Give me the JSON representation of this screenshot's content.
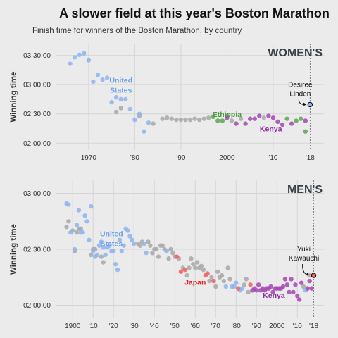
{
  "title": "A slower field at this year's Boston Marathon",
  "subtitle": "Finish time for winners of the Boston Marathon, by country",
  "colors": {
    "United States": "#8db4f0",
    "Ethiopia": "#5aa84e",
    "Kenya": "#a447b4",
    "Japan": "#f06060",
    "Other": "#a8a8a8",
    "usa_label": "#6d9ee8",
    "ethiopia_label": "#4c9a42",
    "kenya_label": "#8e2fa0",
    "japan_label": "#e02020",
    "highlight_outline": "#000000"
  },
  "chart_data": [
    {
      "type": "scatter",
      "panel_label": "WOMEN'S",
      "ylabel": "Winning time",
      "xlabel": "",
      "x_ticks": [
        1970,
        1980,
        1990,
        2000,
        2010,
        2018
      ],
      "x_tick_labels": [
        "1970",
        "'80",
        "'90",
        "2000",
        "'10",
        "'18"
      ],
      "y_ticks": [
        120,
        150,
        180,
        210
      ],
      "y_tick_labels": [
        "02:00:00",
        "02:30:00",
        "03:00:00",
        "03:30:00"
      ],
      "xlim": [
        1963,
        2021
      ],
      "ylim": [
        113,
        222
      ],
      "y_units": "minutes",
      "country_labels": [
        {
          "text": "United\nStates",
          "country": "United States",
          "x": 1977,
          "y": 182
        },
        {
          "text": "Ethiopia",
          "country": "Ethiopia",
          "x": 2000,
          "y": 147
        },
        {
          "text": "Kenya",
          "country": "Kenya",
          "x": 2009.5,
          "y": 132
        }
      ],
      "annotation": {
        "text": "Desiree\nLinden",
        "x": 2018,
        "y": 159
      },
      "series": [
        {
          "name": "United States",
          "points": [
            [
              1966,
              201.4
            ],
            [
              1967,
              208
            ],
            [
              1968,
              210.6
            ],
            [
              1969,
              212
            ],
            [
              1970,
              205
            ],
            [
              1971,
              183
            ],
            [
              1972,
              190
            ],
            [
              1973,
              185
            ],
            [
              1974,
              187
            ],
            [
              1975,
              162
            ],
            [
              1976,
              167
            ],
            [
              1977,
              165
            ],
            [
              1978,
              165
            ],
            [
              1979,
              155
            ],
            [
              1980,
              144
            ],
            [
              1981,
              150
            ],
            [
              1982,
              132
            ],
            [
              1983,
              141
            ],
            [
              2018,
              159.6
            ]
          ]
        },
        {
          "name": "Ethiopia",
          "points": [
            [
              1997,
              147
            ],
            [
              1998,
              143
            ],
            [
              1999,
              143
            ],
            [
              2000,
              148
            ],
            [
              2013,
              145
            ],
            [
              2015,
              143
            ],
            [
              2016,
              145
            ],
            [
              2017,
              132
            ]
          ]
        },
        {
          "name": "Kenya",
          "points": [
            [
              2000,
              146
            ],
            [
              2002,
              140
            ],
            [
              2004,
              140
            ],
            [
              2005,
              145
            ],
            [
              2006,
              145
            ],
            [
              2007,
              148
            ],
            [
              2009,
              148
            ],
            [
              2010,
              146
            ],
            [
              2011,
              142
            ],
            [
              2012,
              139
            ],
            [
              2014,
              140
            ],
            [
              2017,
              143
            ]
          ]
        },
        {
          "name": "Other",
          "points": [
            [
              1976,
              152
            ],
            [
              1977,
              156
            ],
            [
              1981,
              148
            ],
            [
              1984,
              140
            ],
            [
              1986,
              145
            ],
            [
              1987,
              146
            ],
            [
              1988,
              145
            ],
            [
              1989,
              144
            ],
            [
              1990,
              144
            ],
            [
              1991,
              144
            ],
            [
              1992,
              144
            ],
            [
              1993,
              145
            ],
            [
              1994,
              144
            ],
            [
              1995,
              145
            ],
            [
              1996,
              146
            ],
            [
              2001,
              143
            ],
            [
              2003,
              145
            ],
            [
              2008,
              146
            ]
          ]
        }
      ]
    },
    {
      "type": "scatter",
      "panel_label": "MEN'S",
      "ylabel": "Winning time",
      "xlabel": "",
      "x_ticks": [
        1900,
        1910,
        1920,
        1930,
        1940,
        1950,
        1960,
        1970,
        1980,
        1990,
        2000,
        2010,
        2018
      ],
      "x_tick_labels": [
        "1900",
        "'10",
        "'20",
        "'30",
        "'40",
        "'50",
        "'60",
        "'70",
        "'80",
        "'90",
        "2000",
        "'10",
        "'18"
      ],
      "y_ticks": [
        120,
        150,
        180
      ],
      "y_tick_labels": [
        "02:00:00",
        "02:30:00",
        "03:00:00"
      ],
      "xlim": [
        1892,
        2023
      ],
      "ylim": [
        113,
        187
      ],
      "y_units": "minutes",
      "country_labels": [
        {
          "text": "United\nStates",
          "country": "United States",
          "x": 1919,
          "y": 157
        },
        {
          "text": "Japan",
          "country": "Japan",
          "x": 1960,
          "y": 131
        },
        {
          "text": "Kenya",
          "country": "Kenya",
          "x": 1998.5,
          "y": 124
        }
      ],
      "annotation": {
        "text": "Yuki\nKawauchi",
        "x": 2018,
        "y": 136
      },
      "series": [
        {
          "name": "United States",
          "points": [
            [
              1897,
              174.5
            ],
            [
              1898,
              174
            ],
            [
              1899,
              159
            ],
            [
              1901,
              150
            ],
            [
              1902,
              163
            ],
            [
              1903,
              171
            ],
            [
              1904,
              159
            ],
            [
              1905,
              159
            ],
            [
              1906,
              168
            ],
            [
              1907,
              165
            ],
            [
              1908,
              155
            ],
            [
              1909,
              173
            ],
            [
              1910,
              149
            ],
            [
              1911,
              146
            ],
            [
              1912,
              147
            ],
            [
              1913,
              152
            ],
            [
              1914,
              154
            ],
            [
              1915,
              151
            ],
            [
              1916,
              147
            ],
            [
              1917,
              151
            ],
            [
              1918,
              152
            ],
            [
              1919,
              149
            ],
            [
              1920,
              149
            ],
            [
              1921,
              142
            ],
            [
              1922,
              139
            ],
            [
              1923,
              155
            ],
            [
              1924,
              149
            ],
            [
              1925,
              152
            ],
            [
              1926,
              161
            ],
            [
              1927,
              160
            ],
            [
              1928,
              157
            ],
            [
              1929,
              155
            ],
            [
              1930,
              153
            ],
            [
              1935,
              153
            ],
            [
              1936,
              148
            ],
            [
              1946,
              149
            ],
            [
              1975,
              130
            ],
            [
              1978,
              130
            ],
            [
              1979,
              130
            ],
            [
              1980,
              132
            ],
            [
              1982,
              128
            ],
            [
              1983,
              129
            ],
            [
              2014,
              128
            ]
          ]
        },
        {
          "name": "Japan",
          "points": [
            [
              1951,
              146
            ],
            [
              1953,
              138
            ],
            [
              1955,
              139
            ],
            [
              1965,
              136
            ],
            [
              1966,
              137
            ],
            [
              1969,
              133
            ],
            [
              1981,
              129
            ],
            [
              1987,
              131
            ],
            [
              2018,
              136
            ]
          ]
        },
        {
          "name": "Kenya",
          "points": [
            [
              1988,
              128
            ],
            [
              1989,
              129
            ],
            [
              1990,
              128
            ],
            [
              1991,
              131
            ],
            [
              1992,
              128
            ],
            [
              1993,
              129
            ],
            [
              1994,
              128
            ],
            [
              1995,
              129
            ],
            [
              1996,
              129
            ],
            [
              1997,
              130
            ],
            [
              1998,
              127
            ],
            [
              1999,
              129
            ],
            [
              2000,
              129
            ],
            [
              2001,
              129
            ],
            [
              2002,
              129
            ],
            [
              2003,
              130
            ],
            [
              2004,
              134
            ],
            [
              2005,
              131
            ],
            [
              2006,
              127
            ],
            [
              2007,
              134
            ],
            [
              2008,
              127
            ],
            [
              2009,
              131
            ],
            [
              2010,
              125
            ],
            [
              2011,
              123
            ],
            [
              2012,
              132
            ],
            [
              2015,
              129
            ],
            [
              2016,
              133
            ],
            [
              2017,
              129
            ]
          ]
        },
        {
          "name": "Other",
          "points": [
            [
              1897,
              162
            ],
            [
              1898,
              165
            ],
            [
              1900,
              160
            ],
            [
              1901,
              149
            ],
            [
              1902,
              159
            ],
            [
              1903,
              161
            ],
            [
              1904,
              161
            ],
            [
              1909,
              147
            ],
            [
              1910,
              150
            ],
            [
              1911,
              150
            ],
            [
              1914,
              146
            ],
            [
              1915,
              143
            ],
            [
              1932,
              153
            ],
            [
              1933,
              152
            ],
            [
              1934,
              154
            ],
            [
              1937,
              154
            ],
            [
              1938,
              152
            ],
            [
              1939,
              148
            ],
            [
              1940,
              150
            ],
            [
              1941,
              150
            ],
            [
              1942,
              146
            ],
            [
              1943,
              152
            ],
            [
              1944,
              152
            ],
            [
              1945,
              150
            ],
            [
              1947,
              145
            ],
            [
              1948,
              150
            ],
            [
              1949,
              148
            ],
            [
              1950,
              146
            ],
            [
              1952,
              145
            ],
            [
              1954,
              140
            ],
            [
              1956,
              136
            ],
            [
              1957,
              140
            ],
            [
              1958,
              145
            ],
            [
              1959,
              142
            ],
            [
              1960,
              140
            ],
            [
              1961,
              143
            ],
            [
              1962,
              140
            ],
            [
              1963,
              141
            ],
            [
              1964,
              139
            ],
            [
              1967,
              133
            ],
            [
              1968,
              135
            ],
            [
              1970,
              130
            ],
            [
              1971,
              138
            ],
            [
              1972,
              135
            ],
            [
              1973,
              136
            ],
            [
              1974,
              133
            ],
            [
              1976,
              140
            ],
            [
              1977,
              134
            ],
            [
              1984,
              131
            ],
            [
              1985,
              134
            ],
            [
              1986,
              127
            ],
            [
              2013,
              130
            ],
            [
              2016,
              136
            ]
          ]
        }
      ]
    }
  ]
}
